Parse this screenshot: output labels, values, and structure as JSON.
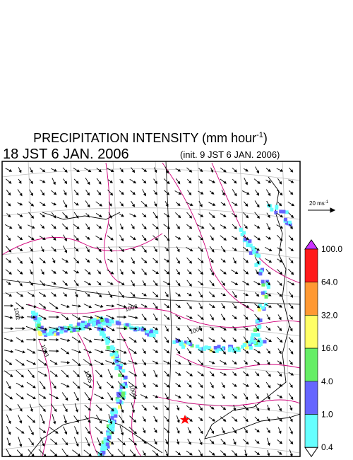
{
  "title": {
    "text": "PRECIPITATION INTENSITY (mm hour",
    "sup": "-1",
    "close": ")"
  },
  "valid_time": "18 JST 6 JAN. 2006",
  "init_time": "(init. 9 JST 6 JAN. 2006)",
  "vector_scale": {
    "text": "20 ms",
    "sup": "-1"
  },
  "contour_labels": [
    "1007",
    "1006",
    "1005",
    "1004",
    "1003",
    "1002"
  ],
  "colorbar": {
    "labels": [
      "100.0",
      "64.0",
      "32.0",
      "16.0",
      "4.0",
      "1.0",
      "0.4"
    ],
    "colors": [
      "#cc33ff",
      "#ff1a1a",
      "#ff9933",
      "#ffff66",
      "#66ee66",
      "#6666ff",
      "#66ffff",
      "#ffffff"
    ]
  }
}
